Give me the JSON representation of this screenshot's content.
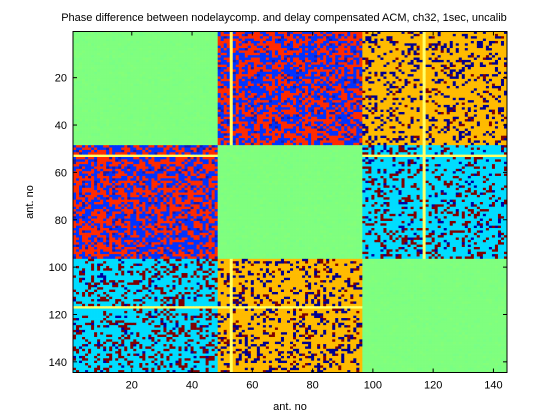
{
  "chart_data": {
    "type": "heatmap",
    "title": "Phase difference between nodelaycomp. and delay compensated ACM, ch32, 1sec, uncalib",
    "xlabel": "ant. no",
    "ylabel": "ant. no",
    "xlim": [
      1,
      144
    ],
    "ylim": [
      1,
      144
    ],
    "y_reversed": true,
    "x_ticks": [
      20,
      40,
      60,
      80,
      100,
      120,
      140
    ],
    "y_ticks": [
      20,
      40,
      60,
      80,
      100,
      120,
      140
    ],
    "n": 144,
    "station_blocks": [
      [
        1,
        48
      ],
      [
        49,
        96
      ],
      [
        97,
        144
      ]
    ],
    "block_pattern": [
      [
        0,
        1,
        2
      ],
      [
        1,
        0,
        3
      ],
      [
        4,
        5,
        0
      ]
    ],
    "patterns": [
      {
        "name": "uniform",
        "colors": [
          "#7fff7f",
          "#85ff79",
          "#79ff85"
        ],
        "weights": [
          0.8,
          0.1,
          0.1
        ]
      },
      {
        "name": "red-blue",
        "colors": [
          "#ff2a00",
          "#0033ff",
          "#1a1aaa"
        ],
        "weights": [
          0.5,
          0.44,
          0.06
        ]
      },
      {
        "name": "orange-navy",
        "colors": [
          "#ffbb00",
          "#00008f",
          "#800000"
        ],
        "weights": [
          0.72,
          0.22,
          0.06
        ]
      },
      {
        "name": "cyan-maroon",
        "colors": [
          "#00ddff",
          "#800000",
          "#0000a0"
        ],
        "weights": [
          0.74,
          0.2,
          0.06
        ]
      },
      {
        "name": "cyan-maroon-dense",
        "colors": [
          "#00ddff",
          "#800000",
          "#0000a0"
        ],
        "weights": [
          0.7,
          0.25,
          0.05
        ]
      },
      {
        "name": "orange-navy-dense",
        "colors": [
          "#ffbb00",
          "#00008f",
          "#800000"
        ],
        "weights": [
          0.7,
          0.22,
          0.08
        ]
      }
    ],
    "flagged_antennas": [
      {
        "ant": 53,
        "color": "#ffff66"
      },
      {
        "ant": 117,
        "color": "#ffff66"
      }
    ],
    "colors": {
      "uniform": "#7fff7f",
      "stripe": "#ffff66"
    }
  }
}
